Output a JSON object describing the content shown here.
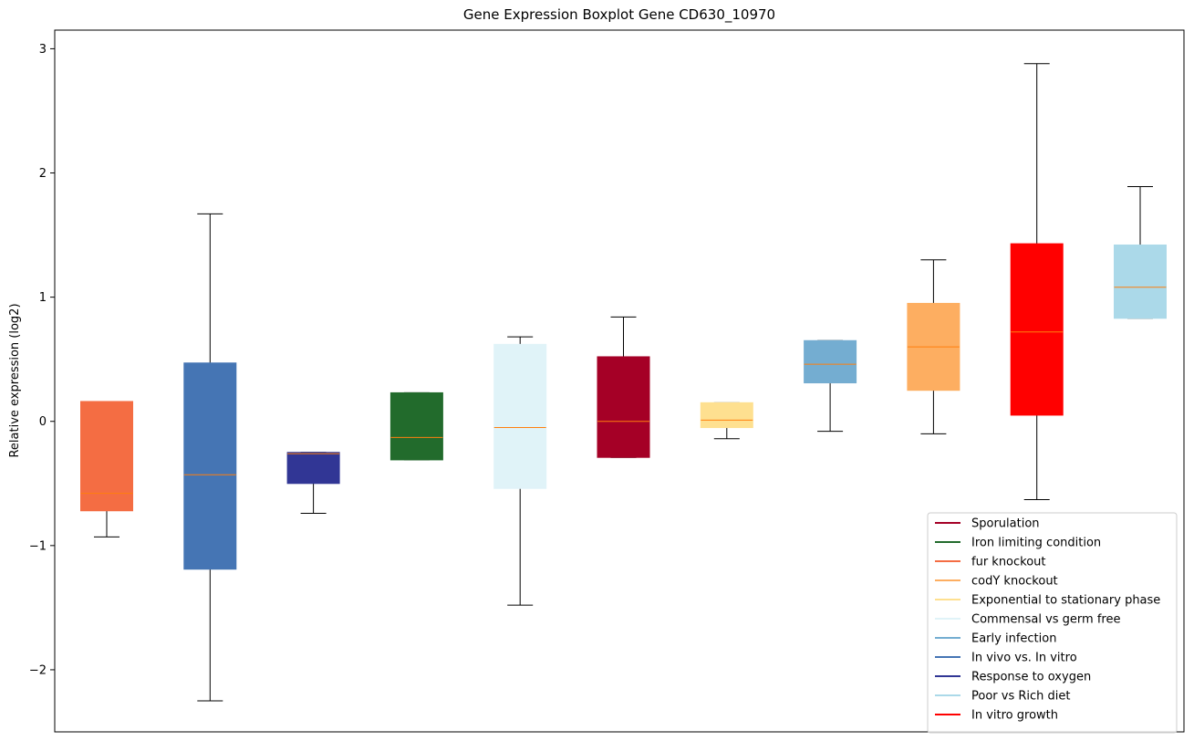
{
  "chart_data": {
    "type": "boxplot",
    "title": "Gene Expression Boxplot Gene CD630_10970",
    "xlabel": "",
    "ylabel": "Relative expression (log2)",
    "ylim": [
      -2.5,
      3.15
    ],
    "yticks": [
      -2,
      -1,
      0,
      1,
      2,
      3
    ],
    "ytick_labels": [
      "−2",
      "−1",
      "0",
      "1",
      "2",
      "3"
    ],
    "grid": false,
    "legend_position": "lower-right",
    "median_color": "#ff7f0e",
    "whisker_color": "#000000",
    "boxes": [
      {
        "name": "fur knockout",
        "color": "#f46d43",
        "whislo": -0.93,
        "q1": -0.72,
        "med": -0.58,
        "q3": 0.16,
        "whishi": 0.16
      },
      {
        "name": "In vivo vs. In vitro",
        "color": "#4575b4",
        "whislo": -2.25,
        "q1": -1.19,
        "med": -0.43,
        "q3": 0.47,
        "whishi": 1.67
      },
      {
        "name": "Response to oxygen",
        "color": "#313695",
        "whislo": -0.74,
        "q1": -0.5,
        "med": -0.26,
        "q3": -0.25,
        "whishi": -0.25
      },
      {
        "name": "Iron limiting condition",
        "color": "#226b2c",
        "whislo": -0.31,
        "q1": -0.31,
        "med": -0.13,
        "q3": 0.23,
        "whishi": 0.23
      },
      {
        "name": "Commensal vs germ free",
        "color": "#e0f3f8",
        "whislo": -1.48,
        "q1": -0.54,
        "med": -0.05,
        "q3": 0.62,
        "whishi": 0.68
      },
      {
        "name": "Sporulation",
        "color": "#a50026",
        "whislo": -0.29,
        "q1": -0.29,
        "med": 0.0,
        "q3": 0.52,
        "whishi": 0.84
      },
      {
        "name": "Exponential to stationary phase",
        "color": "#fee090",
        "whislo": -0.14,
        "q1": -0.05,
        "med": 0.01,
        "q3": 0.15,
        "whishi": 0.15
      },
      {
        "name": "Early infection",
        "color": "#74add1",
        "whislo": -0.08,
        "q1": 0.31,
        "med": 0.46,
        "q3": 0.65,
        "whishi": 0.65
      },
      {
        "name": "codY knockout",
        "color": "#fdae61",
        "whislo": -0.1,
        "q1": 0.25,
        "med": 0.6,
        "q3": 0.95,
        "whishi": 1.3
      },
      {
        "name": "In vitro growth",
        "color": "#ff0000",
        "whislo": -0.63,
        "q1": 0.05,
        "med": 0.72,
        "q3": 1.43,
        "whishi": 2.88
      },
      {
        "name": "Poor vs Rich diet",
        "color": "#abd9e9",
        "whislo": 0.83,
        "q1": 0.83,
        "med": 1.08,
        "q3": 1.42,
        "whishi": 1.89
      }
    ],
    "legend": [
      {
        "label": "Sporulation",
        "color": "#a50026"
      },
      {
        "label": "Iron limiting condition",
        "color": "#226b2c"
      },
      {
        "label": "fur knockout",
        "color": "#f46d43"
      },
      {
        "label": "codY knockout",
        "color": "#fdae61"
      },
      {
        "label": "Exponential to stationary phase",
        "color": "#fee090"
      },
      {
        "label": "Commensal vs germ free",
        "color": "#e0f3f8"
      },
      {
        "label": "Early infection",
        "color": "#74add1"
      },
      {
        "label": "In vivo vs. In vitro",
        "color": "#4575b4"
      },
      {
        "label": "Response to oxygen",
        "color": "#313695"
      },
      {
        "label": "Poor vs Rich diet",
        "color": "#abd9e9"
      },
      {
        "label": "In vitro growth",
        "color": "#ff0000"
      }
    ]
  }
}
